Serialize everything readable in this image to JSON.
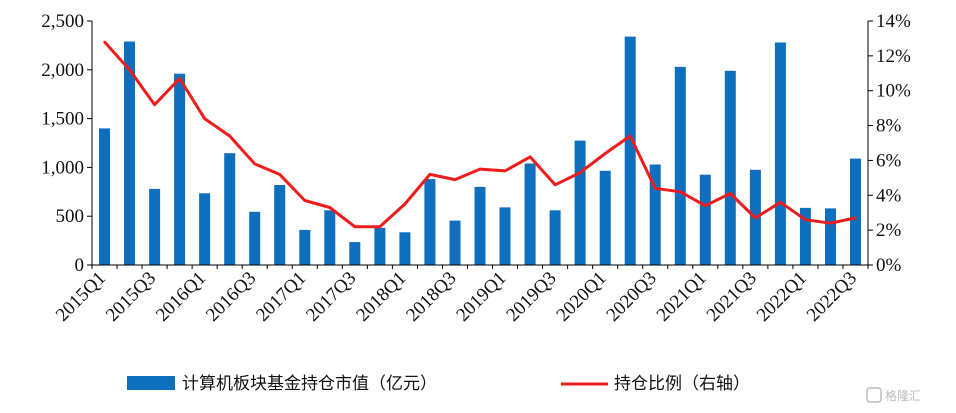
{
  "chart_data": {
    "type": "bar",
    "categories": [
      "2015Q1",
      "2015Q2",
      "2015Q3",
      "2015Q4",
      "2016Q1",
      "2016Q2",
      "2016Q3",
      "2016Q4",
      "2017Q1",
      "2017Q2",
      "2017Q3",
      "2017Q4",
      "2018Q1",
      "2018Q2",
      "2018Q3",
      "2018Q4",
      "2019Q1",
      "2019Q2",
      "2019Q3",
      "2019Q4",
      "2020Q1",
      "2020Q2",
      "2020Q3",
      "2020Q4",
      "2021Q1",
      "2021Q2",
      "2021Q3",
      "2021Q4",
      "2022Q1",
      "2022Q2",
      "2022Q3"
    ],
    "x_tick_labels": [
      "2015Q1",
      "2015Q3",
      "2016Q1",
      "2016Q3",
      "2017Q1",
      "2017Q3",
      "2018Q1",
      "2018Q3",
      "2019Q1",
      "2019Q3",
      "2020Q1",
      "2020Q3",
      "2021Q1",
      "2021Q3",
      "2022Q1",
      "2022Q3"
    ],
    "series": [
      {
        "name": "计算机板块基金持仓市值（亿元）",
        "type": "bar",
        "axis": "left",
        "color": "#0f6fbf",
        "values": [
          1400,
          2290,
          780,
          1960,
          735,
          1145,
          545,
          820,
          360,
          560,
          235,
          380,
          335,
          880,
          455,
          800,
          590,
          1040,
          560,
          1275,
          965,
          2340,
          1030,
          2030,
          925,
          1990,
          975,
          2280,
          585,
          580,
          1090
        ]
      },
      {
        "name": "持仓比例（右轴）",
        "type": "line",
        "axis": "right",
        "color": "#ee1c1c",
        "values": [
          12.8,
          11.2,
          9.2,
          10.7,
          8.4,
          7.4,
          5.8,
          5.2,
          3.7,
          3.3,
          2.2,
          2.2,
          3.5,
          5.2,
          4.9,
          5.5,
          5.4,
          6.2,
          4.6,
          5.3,
          6.4,
          7.4,
          4.4,
          4.2,
          3.4,
          4.1,
          2.7,
          3.6,
          2.6,
          2.4,
          2.7
        ]
      }
    ],
    "y_left": {
      "ticks": [
        "0",
        "500",
        "1,000",
        "1,500",
        "2,000",
        "2,500"
      ],
      "min": 0,
      "max": 2500
    },
    "y_right": {
      "ticks": [
        "0%",
        "2%",
        "4%",
        "6%",
        "8%",
        "10%",
        "12%",
        "14%"
      ],
      "min": 0,
      "max": 14
    },
    "xlabel": "",
    "ylabel": "",
    "grid": false,
    "legend": "bottom"
  },
  "watermark": {
    "text": "格隆汇"
  }
}
